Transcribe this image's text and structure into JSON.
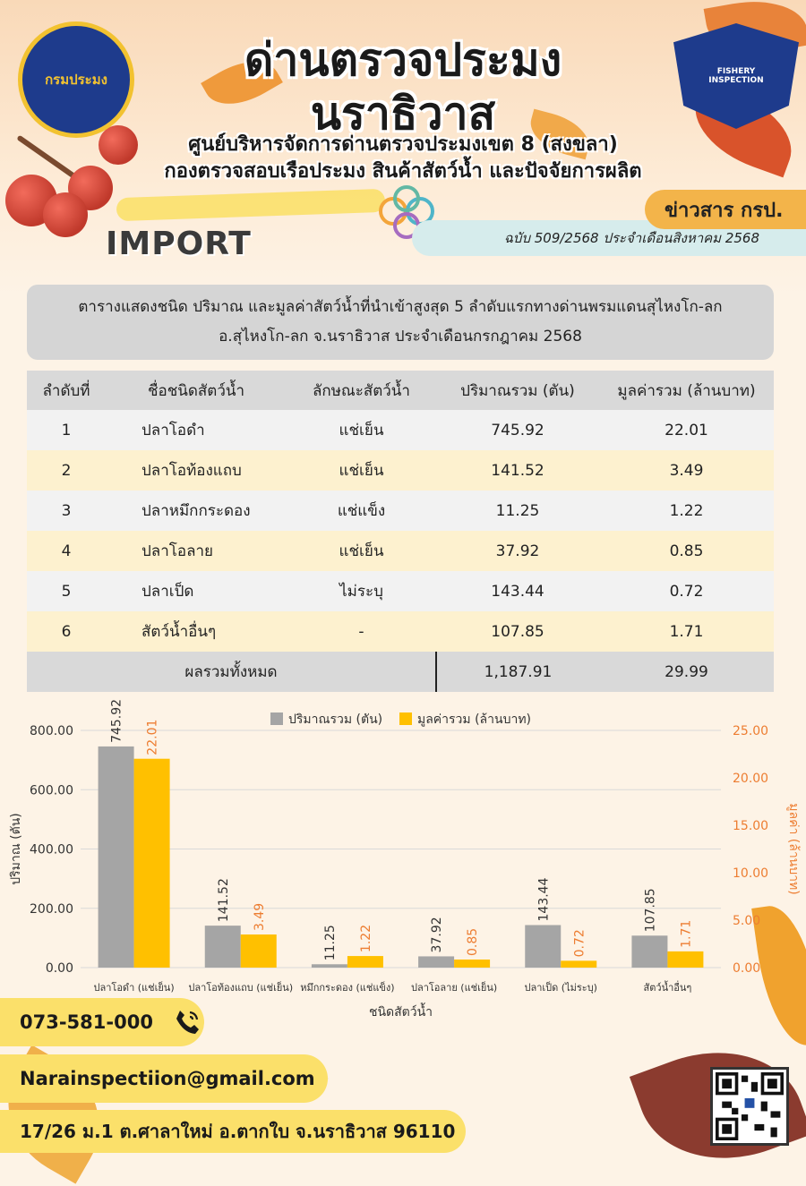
{
  "header": {
    "title_line1": "ด่านตรวจประมง",
    "title_line2": "นราธิวาส",
    "subtitle1": "ศูนย์บริหารจัดการด่านตรวจประมงเขต 8 (สงขลา)",
    "subtitle2": "กองตรวจสอบเรือประมง สินค้าสัตว์น้ำ และปัจจัยการผลิต",
    "left_logo_text": "กรมประมง",
    "right_badge_text": "FISHERY INSPECTION",
    "news_tag": "ข่าวสาร กรป.",
    "issue": "ฉบับ 509/2568 ประจำเดือนสิงหาคม 2568",
    "section_label": "IMPORT"
  },
  "caption": {
    "line1": "ตารางแสดงชนิด ปริมาณ และมูลค่าสัตว์น้ำที่นำเข้าสูงสุด 5 ลำดับแรกทางด่านพรมแดนสุไหงโก-ลก",
    "line2": "อ.สุไหงโก-ลก จ.นราธิวาส ประจำเดือนกรกฎาคม 2568"
  },
  "table": {
    "headers": [
      "ลำดับที่",
      "ชื่อชนิดสัตว์น้ำ",
      "ลักษณะสัตว์น้ำ",
      "ปริมาณรวม (ตัน)",
      "มูลค่ารวม (ล้านบาท)"
    ],
    "rows": [
      [
        "1",
        "ปลาโอดำ",
        "แช่เย็น",
        "745.92",
        "22.01"
      ],
      [
        "2",
        "ปลาโอท้องแถบ",
        "แช่เย็น",
        "141.52",
        "3.49"
      ],
      [
        "3",
        "ปลาหมึกกระดอง",
        "แช่แข็ง",
        "11.25",
        "1.22"
      ],
      [
        "4",
        "ปลาโอลาย",
        "แช่เย็น",
        "37.92",
        "0.85"
      ],
      [
        "5",
        "ปลาเป็ด",
        "ไม่ระบุ",
        "143.44",
        "0.72"
      ],
      [
        "6",
        "สัตว์น้ำอื่นๆ",
        "-",
        "107.85",
        "1.71"
      ]
    ],
    "total_label": "ผลรวมทั้งหมด",
    "total_quantity": "1,187.91",
    "total_value": "29.99"
  },
  "chart_data": {
    "type": "bar",
    "categories": [
      "ปลาโอดำ (แช่เย็น)",
      "ปลาโอท้องแถบ (แช่เย็น)",
      "หมึกกระดอง (แช่แข็ง)",
      "ปลาโอลาย (แช่เย็น)",
      "ปลาเป็ด (ไม่ระบุ)",
      "สัตว์น้ำอื่นๆ"
    ],
    "series": [
      {
        "name": "ปริมาณรวม (ตัน)",
        "values": [
          745.92,
          141.52,
          11.25,
          37.92,
          143.44,
          107.85
        ],
        "axis": "left",
        "color": "#a5a5a5"
      },
      {
        "name": "มูลค่ารวม (ล้านบาท)",
        "values": [
          22.01,
          3.49,
          1.22,
          0.85,
          0.72,
          1.71
        ],
        "axis": "right",
        "color": "#ffc000"
      }
    ],
    "xlabel": "ชนิดสัตว์น้ำ",
    "ylabel": "ปริมาณ (ตัน)",
    "ylabel_right": "มูลค่า (ล้านบาท)",
    "ylim": [
      0,
      800
    ],
    "ylim_right": [
      0,
      25
    ],
    "yticks": [
      "0.00",
      "200.00",
      "400.00",
      "600.00",
      "800.00"
    ],
    "yticks_right": [
      "0.00",
      "5.00",
      "10.00",
      "15.00",
      "20.00",
      "25.00"
    ],
    "value_labels_left": [
      "745.92",
      "141.52",
      "11.25",
      "37.92",
      "143.44",
      "107.85"
    ],
    "value_labels_right": [
      "22.01",
      "3.49",
      "1.22",
      "0.85",
      "0.72",
      "1.71"
    ],
    "legend": "top",
    "grid": true
  },
  "contact": {
    "phone": "073-581-000",
    "email": "Narainspectiion@gmail.com",
    "address": "17/26 ม.1 ต.ศาลาใหม่ อ.ตากใบ จ.นราธิวาส 96110"
  },
  "icons": {
    "phone": "phone-icon",
    "email": "envelope-icon",
    "qr": "qr-code-icon"
  },
  "colors": {
    "quantity_bar": "#a5a5a5",
    "value_bar": "#ffc000",
    "right_axis_text": "#ed7d31",
    "contact_band": "#fbe06a"
  }
}
